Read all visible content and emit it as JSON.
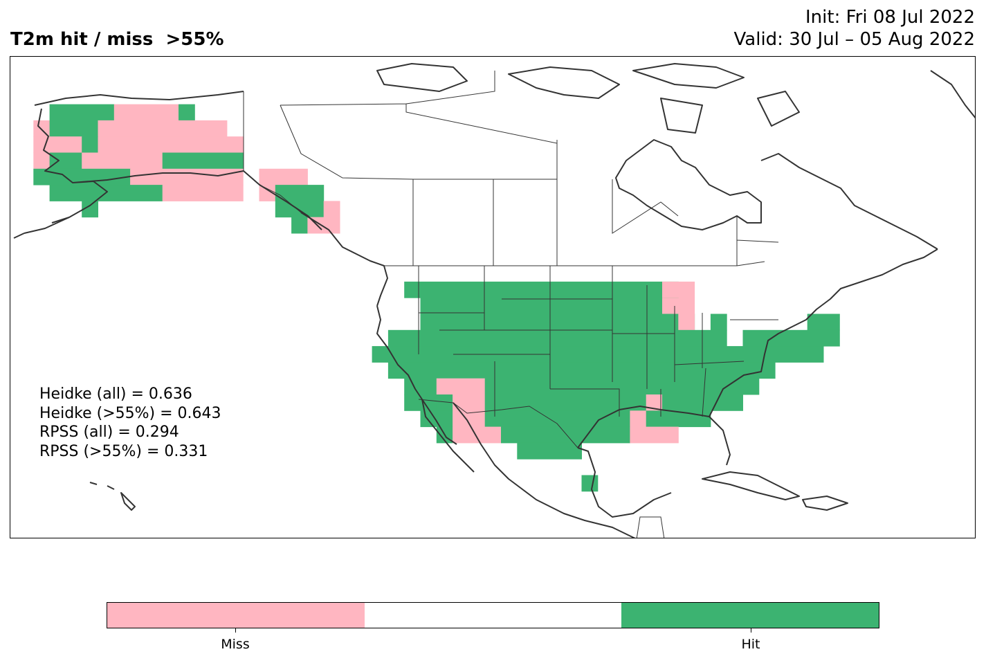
{
  "header": {
    "title": "T2m hit / miss  >55%",
    "init": "Init: Fri 08 Jul 2022",
    "valid": "Valid: 30 Jul – 05 Aug 2022"
  },
  "scores": {
    "heidke_all": "Heidke (all) = 0.636",
    "heidke_55": "Heidke (>55%) = 0.643",
    "rpss_all": "RPSS (all) = 0.294",
    "rpss_55": "RPSS (>55%) = 0.331"
  },
  "colorbar": {
    "miss_label": "Miss",
    "hit_label": "Hit",
    "miss_color": "#ffb6c1",
    "neutral_color": "#ffffff",
    "hit_color": "#3cb371"
  },
  "map": {
    "region": "North America",
    "coastline_color": "#333333"
  }
}
